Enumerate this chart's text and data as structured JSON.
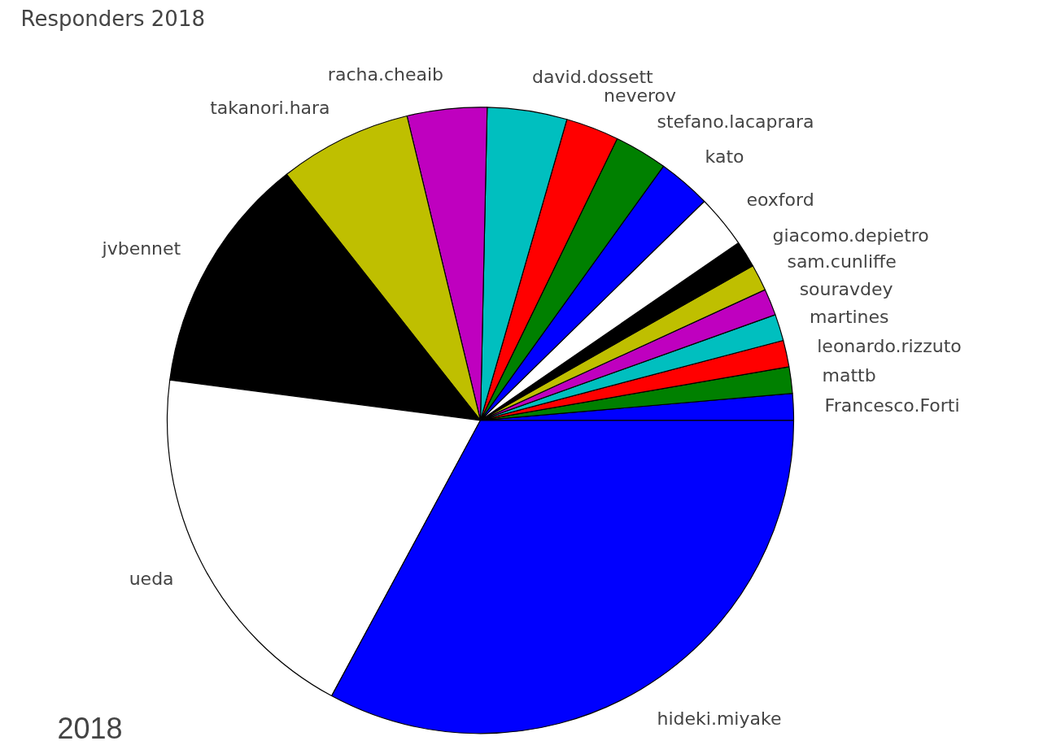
{
  "chart_data": {
    "type": "pie",
    "title": "Responders 2018",
    "categories": [
      "Francesco.Forti",
      "mattb",
      "leonardo.rizzuto",
      "martines",
      "souravdey",
      "sam.cunliffe",
      "giacomo.depietro",
      "eoxford",
      "kato",
      "stefano.lacaprara",
      "neverov",
      "david.dossett",
      "racha.cheaib",
      "takanori.hara",
      "jvbennet",
      "ueda",
      "hideki.miyake"
    ],
    "values": [
      1.37,
      1.37,
      1.37,
      1.37,
      1.37,
      1.37,
      1.37,
      2.74,
      2.74,
      2.74,
      2.74,
      4.11,
      4.11,
      6.85,
      12.33,
      19.18,
      32.88
    ],
    "colors": [
      "#0000ff",
      "#008000",
      "#ff0000",
      "#00bfbf",
      "#bf00bf",
      "#bfbf00",
      "#000000",
      "#ffffff",
      "#0000ff",
      "#008000",
      "#ff0000",
      "#00bfbf",
      "#bf00bf",
      "#bfbf00",
      "#000000",
      "#ffffff",
      "#0000ff"
    ],
    "annotations": [
      "2018"
    ]
  }
}
